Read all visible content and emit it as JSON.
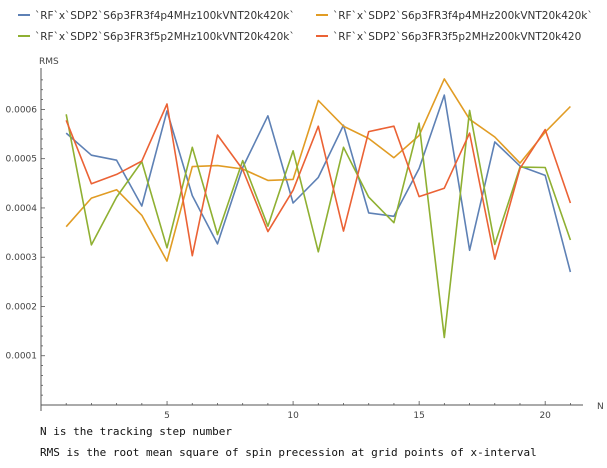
{
  "chart_data": {
    "type": "line",
    "title": "",
    "xlabel": "N",
    "ylabel": "RMS",
    "xlim": [
      0,
      21.5
    ],
    "ylim": [
      0,
      0.00068
    ],
    "x_ticks": [
      5,
      10,
      15,
      20
    ],
    "x_tick_labels": [
      "5",
      "10",
      "15",
      "20"
    ],
    "y_ticks": [
      0.0001,
      0.0002,
      0.0003,
      0.0004,
      0.0005,
      0.0006
    ],
    "y_tick_labels": [
      "0.0001",
      "0.0002",
      "0.0003",
      "0.0004",
      "0.0005",
      "0.0006"
    ],
    "grid": false,
    "legend_position": "top",
    "x": [
      1,
      2,
      3,
      4,
      5,
      6,
      7,
      8,
      9,
      10,
      11,
      12,
      13,
      14,
      15,
      16,
      17,
      18,
      19,
      20,
      21
    ],
    "series": [
      {
        "name": "`RF`x`SDP2`S6p3FR3f4p4MHz100kVNT20k420k`",
        "color": "#5e81b5",
        "values": [
          0.000552,
          0.000507,
          0.000497,
          0.000404,
          0.000597,
          0.000425,
          0.000327,
          0.000482,
          0.000587,
          0.00041,
          0.000462,
          0.000568,
          0.00039,
          0.000383,
          0.00048,
          0.000629,
          0.000314,
          0.000534,
          0.000485,
          0.000466,
          0.00027
        ]
      },
      {
        "name": "`RF`x`SDP2`S6p3FR3f4p4MHz200kVNT20k420k`",
        "color": "#e19c24",
        "values": [
          0.000362,
          0.00042,
          0.000437,
          0.000385,
          0.000292,
          0.000484,
          0.000486,
          0.000479,
          0.000456,
          0.000458,
          0.000618,
          0.000566,
          0.000541,
          0.000502,
          0.000547,
          0.000662,
          0.00058,
          0.000544,
          0.000491,
          0.000554,
          0.000606
        ]
      },
      {
        "name": "`RF`x`SDP2`S6p3FR3f5p2MHz100kVNT20k420k`",
        "color": "#8fb032",
        "values": [
          0.00059,
          0.000325,
          0.000422,
          0.000494,
          0.000319,
          0.000523,
          0.000346,
          0.000496,
          0.000363,
          0.000516,
          0.000311,
          0.000523,
          0.000422,
          0.00037,
          0.000572,
          0.000137,
          0.000598,
          0.000326,
          0.000483,
          0.000482,
          0.000335
        ]
      },
      {
        "name": "`RF`x`SDP2`S6p3FR3f5p2MHz200kVNT20k420",
        "color": "#eb6235",
        "values": [
          0.000578,
          0.000449,
          0.000468,
          0.000495,
          0.000611,
          0.000303,
          0.000548,
          0.000478,
          0.000352,
          0.000436,
          0.000566,
          0.000353,
          0.000555,
          0.000566,
          0.000423,
          0.00044,
          0.000552,
          0.000296,
          0.00048,
          0.000559,
          0.00041
        ]
      }
    ]
  },
  "notes": {
    "line1": "N is the tracking step number",
    "line2": "RMS is the root mean square of spin precession at grid points of x-interval"
  }
}
